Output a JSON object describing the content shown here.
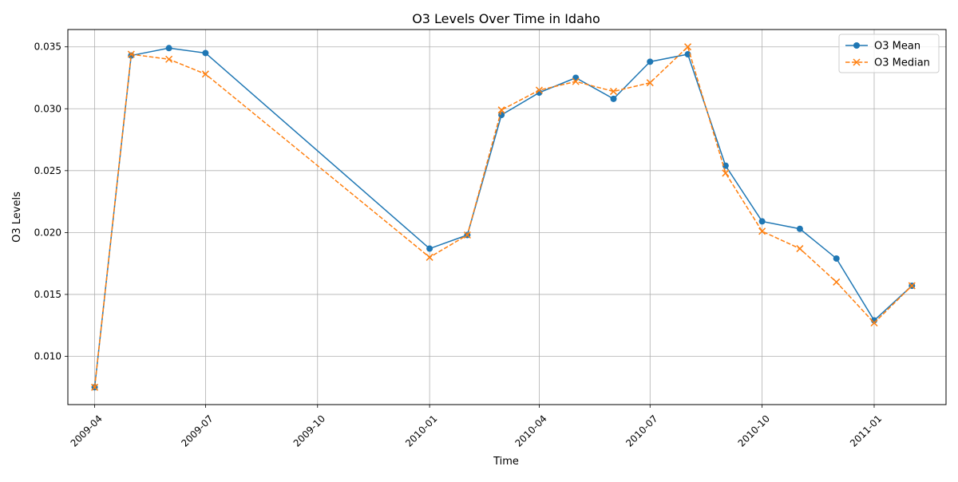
{
  "chart_data": {
    "type": "line",
    "title": "O3 Levels Over Time in Idaho",
    "xlabel": "Time",
    "ylabel": "O3 Levels",
    "x_type": "date",
    "x": [
      "2009-04-01",
      "2009-05-01",
      "2009-06-01",
      "2009-07-01",
      "2010-01-01",
      "2010-02-01",
      "2010-03-01",
      "2010-04-01",
      "2010-05-01",
      "2010-06-01",
      "2010-07-01",
      "2010-08-01",
      "2010-09-01",
      "2010-10-01",
      "2010-11-01",
      "2010-12-01",
      "2011-01-01",
      "2011-02-01"
    ],
    "series": [
      {
        "name": "O3 Mean",
        "color": "#1f77b4",
        "line_style": "solid",
        "marker": "circle",
        "values": [
          0.0075,
          0.0343,
          0.0349,
          0.0345,
          0.0187,
          0.0198,
          0.0295,
          0.0313,
          0.0325,
          0.0308,
          0.0338,
          0.0344,
          0.0254,
          0.0209,
          0.0203,
          0.0179,
          0.0129,
          0.0157
        ]
      },
      {
        "name": "O3 Median",
        "color": "#ff7f0e",
        "line_style": "dashed",
        "marker": "x",
        "values": [
          0.0075,
          0.0344,
          0.034,
          0.0328,
          0.018,
          0.0198,
          0.0299,
          0.0315,
          0.0322,
          0.0314,
          0.0321,
          0.035,
          0.0248,
          0.0201,
          0.0187,
          0.016,
          0.0127,
          0.0157
        ]
      }
    ],
    "xlim": [
      "2009-03-10",
      "2011-03-01"
    ],
    "ylim": [
      0.0061,
      0.0364
    ],
    "x_ticks": [
      "2009-04-01",
      "2009-07-01",
      "2009-10-01",
      "2010-01-01",
      "2010-04-01",
      "2010-07-01",
      "2010-10-01",
      "2011-01-01"
    ],
    "x_tick_labels": [
      "2009-04",
      "2009-07",
      "2009-10",
      "2010-01",
      "2010-04",
      "2010-07",
      "2010-10",
      "2011-01"
    ],
    "y_ticks": [
      0.01,
      0.015,
      0.02,
      0.025,
      0.03,
      0.035
    ],
    "y_tick_labels": [
      "0.010",
      "0.015",
      "0.020",
      "0.025",
      "0.030",
      "0.035"
    ],
    "grid": true,
    "legend_position": "top-right"
  }
}
